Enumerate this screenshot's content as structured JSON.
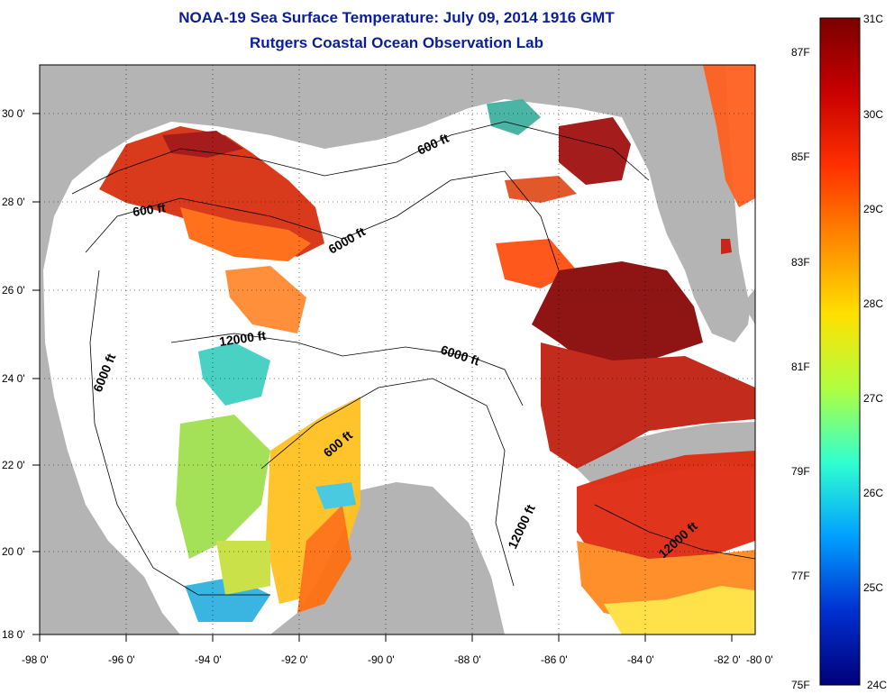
{
  "header": {
    "title": "NOAA-19 Sea Surface Temperature:  July 09, 2014 1916 GMT",
    "subtitle": "Rutgers Coastal Ocean Observation Lab"
  },
  "map": {
    "lon_ticks": [
      "-98 0'",
      "-96 0'",
      "-94 0'",
      "-92 0'",
      "-90 0'",
      "-88 0'",
      "-86 0'",
      "-84 0'",
      "-82 0'",
      "-80 0'"
    ],
    "lat_ticks": [
      "30 0'",
      "28 0'",
      "26 0'",
      "24 0'",
      "22 0'",
      "20 0'",
      "18 0'"
    ],
    "contour_labels": [
      "600 ft",
      "6000 ft",
      "12000 ft",
      "6000 ft",
      "6000 ft",
      "600 ft",
      "600 ft",
      "12000 ft",
      "12000 ft"
    ],
    "colors": {
      "land": "#b4b4b4",
      "no_data": "#ffffff"
    }
  },
  "colorbar": {
    "celsius": [
      "31C",
      "30C",
      "29C",
      "28C",
      "27C",
      "26C",
      "25C",
      "24C"
    ],
    "fahrenheit": [
      "87F",
      "85F",
      "83F",
      "81F",
      "79F",
      "77F",
      "75F"
    ],
    "stops": [
      "#7a0000",
      "#c80000",
      "#ff3000",
      "#ff8a00",
      "#ffe000",
      "#b0ff40",
      "#30ffd0",
      "#00a0ff",
      "#0030d0",
      "#00007a"
    ]
  }
}
